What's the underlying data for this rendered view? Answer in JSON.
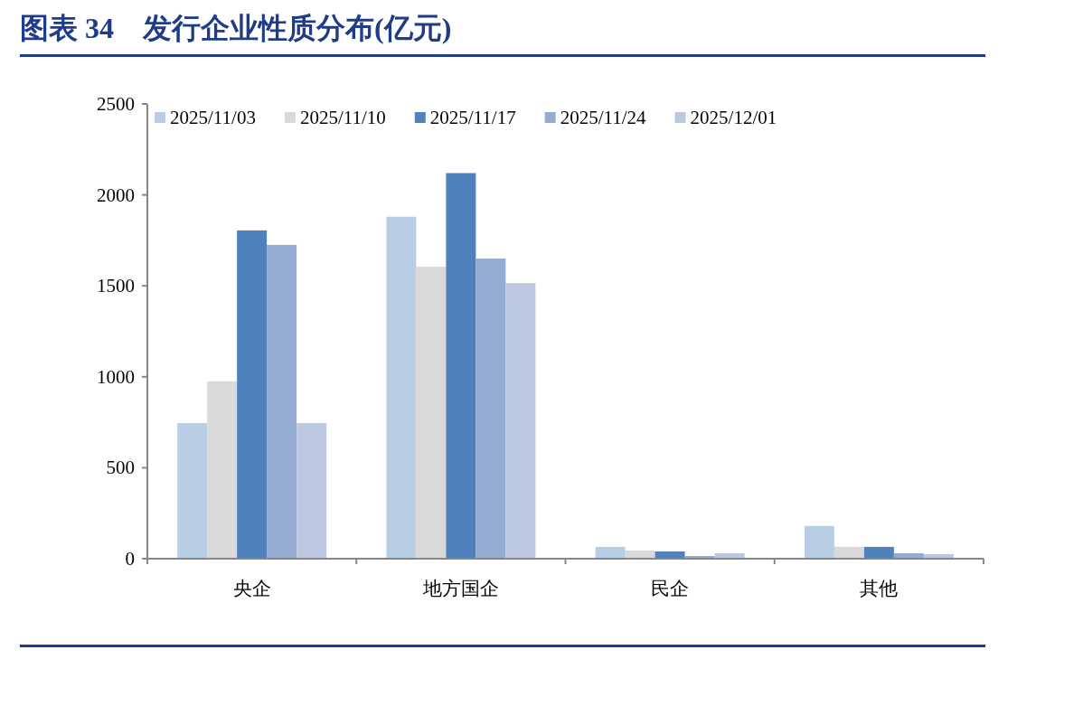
{
  "chart_data": {
    "type": "bar",
    "title": "图表 34　发行企业性质分布(亿元)",
    "categories": [
      "央企",
      "地方国企",
      "民企",
      "其他"
    ],
    "series": [
      {
        "name": "2025/11/03",
        "color": "#b9cde5",
        "values": [
          745,
          1880,
          65,
          180
        ]
      },
      {
        "name": "2025/11/10",
        "color": "#d9d9d9",
        "values": [
          975,
          1605,
          45,
          65
        ]
      },
      {
        "name": "2025/11/17",
        "color": "#4f81bd",
        "values": [
          1805,
          2120,
          40,
          65
        ]
      },
      {
        "name": "2025/11/24",
        "color": "#95abd1",
        "values": [
          1725,
          1650,
          15,
          30
        ]
      },
      {
        "name": "2025/12/01",
        "color": "#bcc8e0",
        "values": [
          745,
          1515,
          30,
          25
        ]
      }
    ],
    "ylim": [
      0,
      2500
    ],
    "yticks": [
      0,
      500,
      1000,
      1500,
      2000,
      2500
    ],
    "grid": false,
    "legend": "top"
  }
}
